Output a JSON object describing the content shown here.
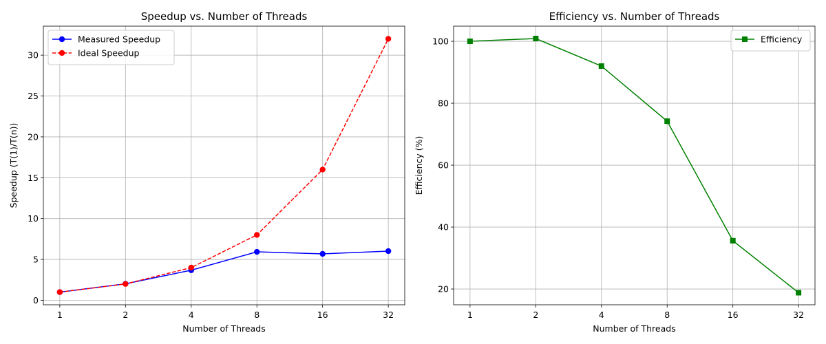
{
  "chart_data": [
    {
      "type": "line",
      "title": "Speedup vs. Number of Threads",
      "xlabel": "Number of Threads",
      "ylabel": "Speedup (T(1)/T(n))",
      "x": [
        1,
        2,
        4,
        8,
        16,
        32
      ],
      "x_scale": "log2",
      "x_tick_labels": [
        "1",
        "2",
        "4",
        "8",
        "16",
        "32"
      ],
      "y_ticks": [
        0,
        5,
        10,
        15,
        20,
        25,
        30
      ],
      "ylim": [
        -0.55,
        33.55
      ],
      "grid": true,
      "legend_position": "top-left",
      "series": [
        {
          "name": "Measured Speedup",
          "values": [
            1.0,
            2.02,
            3.68,
            5.93,
            5.68,
            6.02
          ],
          "color": "#0000ff",
          "style": "solid",
          "marker": "circle"
        },
        {
          "name": "Ideal Speedup",
          "values": [
            1,
            2,
            4,
            8,
            16,
            32
          ],
          "color": "#ff0000",
          "style": "dashed",
          "marker": "circle"
        }
      ]
    },
    {
      "type": "line",
      "title": "Efficiency vs. Number of Threads",
      "xlabel": "Number of Threads",
      "ylabel": "Efficiency (%)",
      "x": [
        1,
        2,
        4,
        8,
        16,
        32
      ],
      "x_scale": "log2",
      "x_tick_labels": [
        "1",
        "2",
        "4",
        "8",
        "16",
        "32"
      ],
      "y_ticks": [
        20,
        40,
        60,
        80,
        100
      ],
      "ylim": [
        14.9,
        104.9
      ],
      "grid": true,
      "legend_position": "top-right",
      "series": [
        {
          "name": "Efficiency",
          "values": [
            100.0,
            100.9,
            92.0,
            74.2,
            35.6,
            18.8
          ],
          "color": "#008000",
          "style": "solid",
          "marker": "square"
        }
      ]
    }
  ]
}
